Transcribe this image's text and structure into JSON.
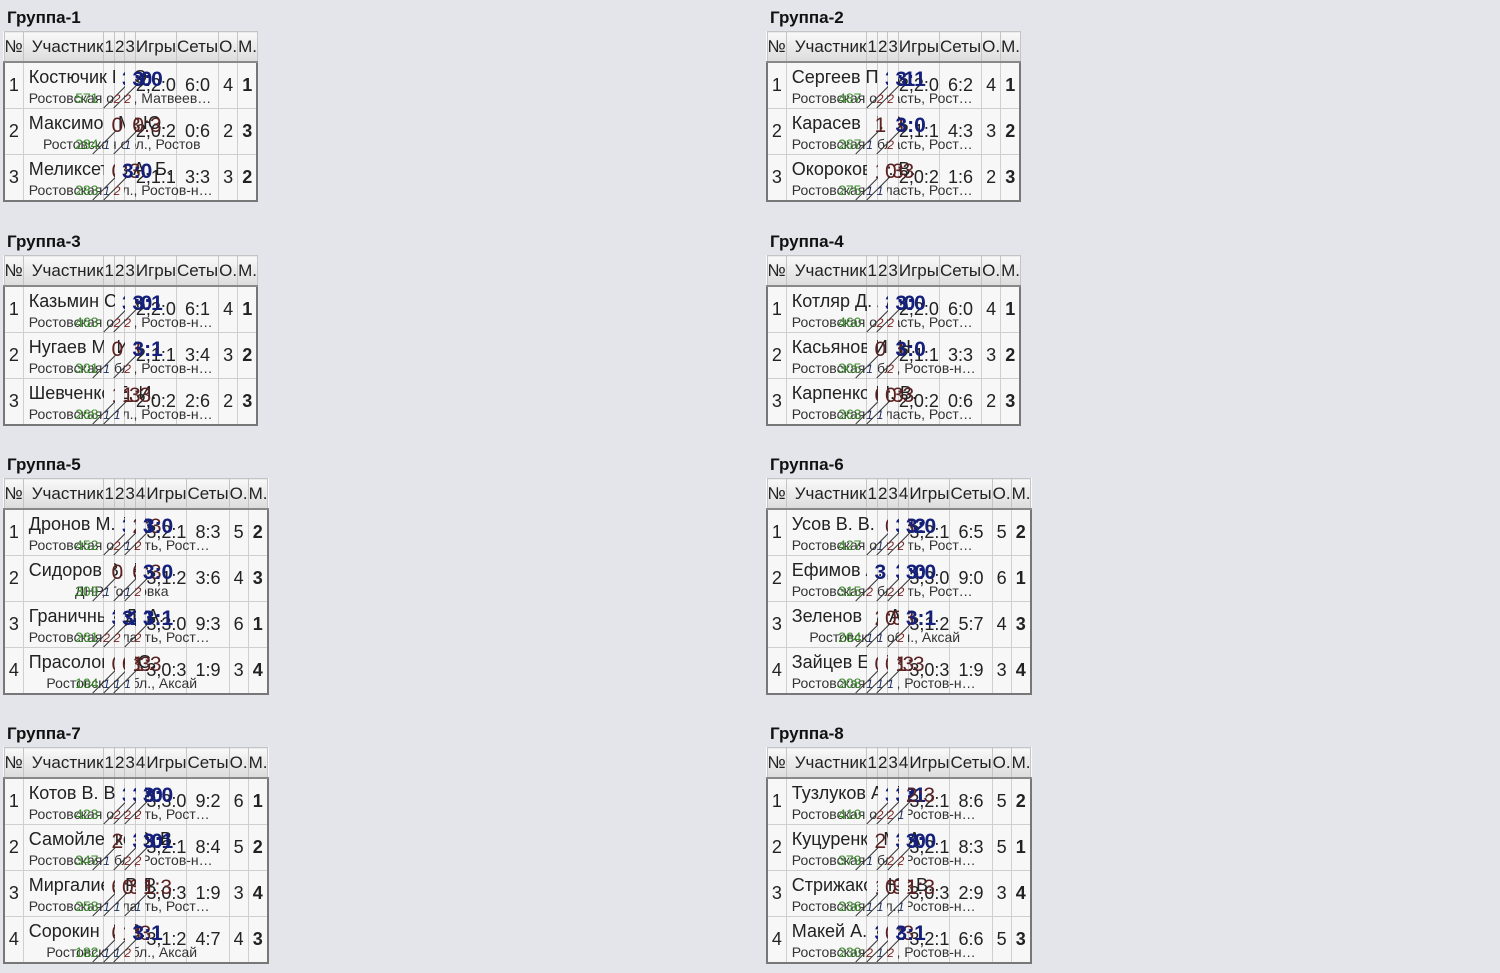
{
  "groups": [
    {
      "title": "Группа-1",
      "header": {
        "no": "№",
        "name": "Участник",
        "cols": [
          "1",
          "2",
          "3"
        ],
        "games": "Игры",
        "sets": "Сеты",
        "pts": "О.",
        "place": "М."
      },
      "rows": [
        {
          "no": "1",
          "name": "Костючик В. Э.",
          "region": "Ростовская обл., Матвеев Курган",
          "rating": "571",
          "scores": [
            null,
            {
              "v": "3:0",
              "w": true,
              "s": "2"
            },
            {
              "v": "3:0",
              "w": true,
              "s": "2"
            }
          ],
          "games": "2,2:0",
          "sets": "6:0",
          "pts": "4",
          "place": "1"
        },
        {
          "no": "2",
          "name": "Максимов М. Ю.",
          "region": "Ростовская обл., Ростов",
          "rating": "284",
          "scores": [
            {
              "v": "0:3",
              "w": false,
              "s": "1"
            },
            null,
            {
              "v": "0:3",
              "w": false,
              "s": "1"
            }
          ],
          "games": "2,0:2",
          "sets": "0:6",
          "pts": "2",
          "place": "3"
        },
        {
          "no": "3",
          "name": "Меликсетов А. Б.",
          "region": "Ростовская обл., Ростов-на-Дону",
          "rating": "283",
          "scores": [
            {
              "v": "0:3",
              "w": false,
              "s": "1"
            },
            {
              "v": "3:0",
              "w": true,
              "s": "2"
            },
            null
          ],
          "games": "2,1:1",
          "sets": "3:3",
          "pts": "3",
          "place": "2"
        }
      ]
    },
    {
      "title": "Группа-2",
      "header": {
        "no": "№",
        "name": "Участник",
        "cols": [
          "1",
          "2",
          "3"
        ],
        "games": "Игры",
        "sets": "Сеты",
        "pts": "О.",
        "place": "М."
      },
      "rows": [
        {
          "no": "1",
          "name": "Сергеев П. А.",
          "region": "Ростовская область, Ростов-на-Дону",
          "rating": "487",
          "scores": [
            null,
            {
              "v": "3:1",
              "w": true,
              "s": "2"
            },
            {
              "v": "3:1",
              "w": true,
              "s": "2"
            }
          ],
          "games": "2,2:0",
          "sets": "6:2",
          "pts": "4",
          "place": "1"
        },
        {
          "no": "2",
          "name": "Карасев Я. О.",
          "region": "Ростовская область, Ростов-на-Дону",
          "rating": "287",
          "scores": [
            {
              "v": "1:3",
              "w": false,
              "s": "1"
            },
            null,
            {
              "v": "3:0",
              "w": true,
              "s": "2"
            }
          ],
          "games": "2,1:1",
          "sets": "4:3",
          "pts": "3",
          "place": "2"
        },
        {
          "no": "3",
          "name": "Окороков В. В.",
          "region": "Ростовская область, Ростов-на-Дону",
          "rating": "275",
          "scores": [
            {
              "v": "1:3",
              "w": false,
              "s": "1"
            },
            {
              "v": "0:3",
              "w": false,
              "s": "1"
            },
            null
          ],
          "games": "2,0:2",
          "sets": "1:6",
          "pts": "2",
          "place": "3"
        }
      ]
    },
    {
      "title": "Группа-3",
      "header": {
        "no": "№",
        "name": "Участник",
        "cols": [
          "1",
          "2",
          "3"
        ],
        "games": "Игры",
        "sets": "Сеты",
        "pts": "О.",
        "place": "М."
      },
      "rows": [
        {
          "no": "1",
          "name": "Казьмин С. А.",
          "region": "Ростовская обл., Ростов-на-Дону",
          "rating": "463",
          "scores": [
            null,
            {
              "v": "3:0",
              "w": true,
              "s": "2"
            },
            {
              "v": "3:1",
              "w": true,
              "s": "2"
            }
          ],
          "games": "2,2:0",
          "sets": "6:1",
          "pts": "4",
          "place": "1"
        },
        {
          "no": "2",
          "name": "Нугаев М. И.",
          "region": "Ростовская обл., Ростов-на-Дону",
          "rating": "301",
          "scores": [
            {
              "v": "0:3",
              "w": false,
              "s": "1"
            },
            null,
            {
              "v": "3:1",
              "w": true,
              "s": "2"
            }
          ],
          "games": "2,1:1",
          "sets": "3:4",
          "pts": "3",
          "place": "2"
        },
        {
          "no": "3",
          "name": "Шевченко Е. И.",
          "region": "Ростовская обл., Ростов-на-Дону",
          "rating": "268",
          "scores": [
            {
              "v": "1:3",
              "w": false,
              "s": "1"
            },
            {
              "v": "1:3",
              "w": false,
              "s": "1"
            },
            null
          ],
          "games": "2,0:2",
          "sets": "2:6",
          "pts": "2",
          "place": "3"
        }
      ]
    },
    {
      "title": "Группа-4",
      "header": {
        "no": "№",
        "name": "Участник",
        "cols": [
          "1",
          "2",
          "3"
        ],
        "games": "Игры",
        "sets": "Сеты",
        "pts": "О.",
        "place": "М."
      },
      "rows": [
        {
          "no": "1",
          "name": "Котляр Д. А.",
          "region": "Ростовская область, Ростов-на-Дону",
          "rating": "460",
          "scores": [
            null,
            {
              "v": "3:0",
              "w": true,
              "s": "2"
            },
            {
              "v": "3:0",
              "w": true,
              "s": "2"
            }
          ],
          "games": "2,2:0",
          "sets": "6:0",
          "pts": "4",
          "place": "1"
        },
        {
          "no": "2",
          "name": "Касьянов И. Н.",
          "region": "Ростовская обл., Ростов-на-Дону",
          "rating": "305",
          "scores": [
            {
              "v": "0:3",
              "w": false,
              "s": "1"
            },
            null,
            {
              "v": "3:0",
              "w": true,
              "s": "2"
            }
          ],
          "games": "2,1:1",
          "sets": "3:3",
          "pts": "3",
          "place": "2"
        },
        {
          "no": "3",
          "name": "Карпенко М. В.",
          "region": "Ростовская область, Ростов-на-Дону",
          "rating": "263",
          "scores": [
            {
              "v": "0:3",
              "w": false,
              "s": "1"
            },
            {
              "v": "0:3",
              "w": false,
              "s": "1"
            },
            null
          ],
          "games": "2,0:2",
          "sets": "0:6",
          "pts": "2",
          "place": "3"
        }
      ]
    },
    {
      "title": "Группа-5",
      "header": {
        "no": "№",
        "name": "Участник",
        "cols": [
          "1",
          "2",
          "3",
          "4"
        ],
        "games": "Игры",
        "sets": "Сеты",
        "pts": "О.",
        "place": "М."
      },
      "rows": [
        {
          "no": "1",
          "name": "Дронов М. Г.",
          "region": "Ростовская область, Ростов-на-Дону",
          "rating": "452",
          "scores": [
            null,
            {
              "v": "3:0",
              "w": true,
              "s": "2"
            },
            {
              "v": "2:3",
              "w": false,
              "s": "1"
            },
            {
              "v": "3:0",
              "w": true,
              "s": "2"
            }
          ],
          "games": "3,2:1",
          "sets": "8:3",
          "pts": "5",
          "place": "2"
        },
        {
          "no": "2",
          "name": "Сидоров В. Э.",
          "region": "ДНР, Горловка",
          "rating": "309",
          "scores": [
            {
              "v": "0:3",
              "w": false,
              "s": "1"
            },
            null,
            {
              "v": "0:3",
              "w": false,
              "s": "1"
            },
            {
              "v": "3:0",
              "w": true,
              "s": "2"
            }
          ],
          "games": "3,1:2",
          "sets": "3:6",
          "pts": "4",
          "place": "3"
        },
        {
          "no": "3",
          "name": "Граничный Д. А.",
          "region": "Ростовская область, Ростов-на-Дону",
          "rating": "261",
          "scores": [
            {
              "v": "3:2",
              "w": true,
              "s": "2"
            },
            {
              "v": "3:0",
              "w": true,
              "s": "2"
            },
            null,
            {
              "v": "3:1",
              "w": true,
              "s": "2"
            }
          ],
          "games": "3,3:0",
          "sets": "9:3",
          "pts": "6",
          "place": "1"
        },
        {
          "no": "4",
          "name": "Прасолов А. С.",
          "region": "Ростовская обл., Аксай",
          "rating": "104",
          "scores": [
            {
              "v": "0:3",
              "w": false,
              "s": "1"
            },
            {
              "v": "0:3",
              "w": false,
              "s": "1"
            },
            {
              "v": "1:3",
              "w": false,
              "s": "1"
            },
            null
          ],
          "games": "3,0:3",
          "sets": "1:9",
          "pts": "3",
          "place": "4"
        }
      ]
    },
    {
      "title": "Группа-6",
      "header": {
        "no": "№",
        "name": "Участник",
        "cols": [
          "1",
          "2",
          "3",
          "4"
        ],
        "games": "Игры",
        "sets": "Сеты",
        "pts": "О.",
        "place": "М."
      },
      "rows": [
        {
          "no": "1",
          "name": "Усов В. В.",
          "region": "Ростовская область, Ростов-на-Дону",
          "rating": "427",
          "scores": [
            null,
            {
              "v": "0:3",
              "w": false,
              "s": "1"
            },
            {
              "v": "3:2",
              "w": true,
              "s": "2"
            },
            {
              "v": "3:0",
              "w": true,
              "s": "2"
            }
          ],
          "games": "3,2:1",
          "sets": "6:5",
          "pts": "5",
          "place": "2"
        },
        {
          "no": "2",
          "name": "Ефимов А. Д.",
          "region": "Ростовская область, Ростов-на-Дону",
          "rating": "315",
          "scores": [
            {
              "v": "3:0",
              "w": true,
              "s": "2"
            },
            null,
            {
              "v": "3:0",
              "w": true,
              "s": "2"
            },
            {
              "v": "3:0",
              "w": true,
              "s": "2"
            }
          ],
          "games": "3,3:0",
          "sets": "9:0",
          "pts": "6",
          "place": "1"
        },
        {
          "no": "3",
          "name": "Зеленов А. А.",
          "region": "Ростовская обл., Аксай",
          "rating": "264",
          "scores": [
            {
              "v": "2:3",
              "w": false,
              "s": "1"
            },
            {
              "v": "0:3",
              "w": false,
              "s": "1"
            },
            null,
            {
              "v": "3:1",
              "w": true,
              "s": "2"
            }
          ],
          "games": "3,1:2",
          "sets": "5:7",
          "pts": "4",
          "place": "3"
        },
        {
          "no": "4",
          "name": "Зайцев Е. С.",
          "region": "Ростовская обл., Ростов-на-Дону",
          "rating": "208",
          "scores": [
            {
              "v": "0:3",
              "w": false,
              "s": "1"
            },
            {
              "v": "0:3",
              "w": false,
              "s": "1"
            },
            {
              "v": "1:3",
              "w": false,
              "s": "1"
            },
            null
          ],
          "games": "3,0:3",
          "sets": "1:9",
          "pts": "3",
          "place": "4"
        }
      ]
    },
    {
      "title": "Группа-7",
      "header": {
        "no": "№",
        "name": "Участник",
        "cols": [
          "1",
          "2",
          "3",
          "4"
        ],
        "games": "Игры",
        "sets": "Сеты",
        "pts": "О.",
        "place": "М."
      },
      "rows": [
        {
          "no": "1",
          "name": "Котов В. В.",
          "region": "Ростовская область, Ростов-на-Дону",
          "rating": "423",
          "scores": [
            null,
            {
              "v": "3:2",
              "w": true,
              "s": "2"
            },
            {
              "v": "3:0",
              "w": true,
              "s": "2"
            },
            {
              "v": "3:0",
              "w": true,
              "s": "2"
            }
          ],
          "games": "3,3:0",
          "sets": "9:2",
          "pts": "6",
          "place": "1"
        },
        {
          "no": "2",
          "name": "Самойленко В. В.",
          "region": "Ростовская обл., Ростов-на-Дону",
          "rating": "347",
          "scores": [
            {
              "v": "2:3",
              "w": false,
              "s": "1"
            },
            null,
            {
              "v": "3:0",
              "w": true,
              "s": "2"
            },
            {
              "v": "3:1",
              "w": true,
              "s": "2"
            }
          ],
          "games": "3,2:1",
          "sets": "8:4",
          "pts": "5",
          "place": "2"
        },
        {
          "no": "3",
          "name": "Миргалиев Р. Р.",
          "region": "Ростовская область, Ростов-на-Дону",
          "rating": "258",
          "scores": [
            {
              "v": "0:3",
              "w": false,
              "s": "1"
            },
            {
              "v": "0:3",
              "w": false,
              "s": "1"
            },
            null,
            {
              "v": "1:3",
              "w": false,
              "s": "1"
            }
          ],
          "games": "3,0:3",
          "sets": "1:9",
          "pts": "3",
          "place": "4"
        },
        {
          "no": "4",
          "name": "Сорокин О. В.",
          "region": "Ростовская обл., Аксай",
          "rating": "182",
          "scores": [
            {
              "v": "0:3",
              "w": false,
              "s": "1"
            },
            {
              "v": "1:3",
              "w": false,
              "s": "1"
            },
            {
              "v": "3:1",
              "w": true,
              "s": "2"
            },
            null
          ],
          "games": "3,1:2",
          "sets": "4:7",
          "pts": "4",
          "place": "3"
        }
      ]
    },
    {
      "title": "Группа-8",
      "header": {
        "no": "№",
        "name": "Участник",
        "cols": [
          "1",
          "2",
          "3",
          "4"
        ],
        "games": "Игры",
        "sets": "Сеты",
        "pts": "О.",
        "place": "М."
      },
      "rows": [
        {
          "no": "1",
          "name": "Тузлуков А. Е.",
          "region": "Ростовская обл., Ростов-на-Дону",
          "rating": "410",
          "scores": [
            null,
            {
              "v": "3:2",
              "w": true,
              "s": "2"
            },
            {
              "v": "3:1",
              "w": true,
              "s": "2"
            },
            {
              "v": "2:3",
              "w": false,
              "s": "1"
            }
          ],
          "games": "3,2:1",
          "sets": "8:6",
          "pts": "5",
          "place": "2"
        },
        {
          "no": "2",
          "name": "Куцуренко М. А.",
          "region": "Ростовская обл., Ростов-на-Дону",
          "rating": "379",
          "scores": [
            {
              "v": "2:3",
              "w": false,
              "s": "1"
            },
            null,
            {
              "v": "3:0",
              "w": true,
              "s": "2"
            },
            {
              "v": "3:0",
              "w": true,
              "s": "2"
            }
          ],
          "games": "3,2:1",
          "sets": "8:3",
          "pts": "5",
          "place": "1"
        },
        {
          "no": "3",
          "name": "Стрижаков Ю. В.",
          "region": "Ростовская обл., Ростов-на-Дону",
          "rating": "236",
          "scores": [
            {
              "v": "1:3",
              "w": false,
              "s": "1"
            },
            {
              "v": "0:3",
              "w": false,
              "s": "1"
            },
            null,
            {
              "v": "1:3",
              "w": false,
              "s": "1"
            }
          ],
          "games": "3,0:3",
          "sets": "2:9",
          "pts": "3",
          "place": "4"
        },
        {
          "no": "4",
          "name": "Макей А. И.",
          "region": "Ростовская обл., Ростов-на-Дону",
          "rating": "230",
          "scores": [
            {
              "v": "3:2",
              "w": true,
              "s": "2"
            },
            {
              "v": "0:3",
              "w": false,
              "s": "1"
            },
            {
              "v": "3:1",
              "w": true,
              "s": "2"
            },
            null
          ],
          "games": "3,2:1",
          "sets": "6:6",
          "pts": "5",
          "place": "3"
        }
      ]
    }
  ]
}
